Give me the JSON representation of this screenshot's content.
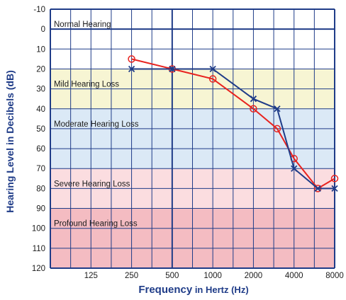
{
  "chart_data": {
    "type": "line",
    "xlabel_main": "Frequency",
    "xlabel_rest": " in Hertz (Hz)",
    "ylabel": "Hearing Level in Decibels (dB)",
    "x_ticks": [
      "125",
      "250",
      "500",
      "1000",
      "2000",
      "4000",
      "8000"
    ],
    "y_ticks": [
      -10,
      0,
      10,
      20,
      30,
      40,
      50,
      60,
      70,
      80,
      90,
      100,
      110,
      120
    ],
    "ylim": [
      -10,
      120
    ],
    "y_inverted": true,
    "x_scale": "log2",
    "grid": true,
    "bands": [
      {
        "label": "Normal Hearing",
        "from": -10,
        "to": 20,
        "color": "#ffffff"
      },
      {
        "label": "Mild Hearing Loss",
        "from": 20,
        "to": 40,
        "color": "#f7f5d3"
      },
      {
        "label": "Moderate Hearing Loss",
        "from": 40,
        "to": 70,
        "color": "#dbe9f6"
      },
      {
        "label": "Severe Hearing Loss",
        "from": 70,
        "to": 90,
        "color": "#fbdde0"
      },
      {
        "label": "Profound Hearing Loss",
        "from": 90,
        "to": 120,
        "color": "#f4bcc2"
      }
    ],
    "series": [
      {
        "marker": "circle",
        "color": "#e8231f",
        "x": [
          250,
          500,
          1000,
          2000,
          3000,
          4000,
          6000,
          8000
        ],
        "y": [
          15,
          20,
          25,
          40,
          50,
          65,
          80,
          75
        ]
      },
      {
        "marker": "x",
        "color": "#1f3c88",
        "x": [
          250,
          500,
          1000,
          2000,
          3000,
          4000,
          6000,
          8000
        ],
        "y": [
          20,
          20,
          20,
          35,
          40,
          70,
          80,
          80
        ]
      }
    ]
  },
  "colors": {
    "grid": "#1f3c88",
    "axis_title": "#1f3c88"
  }
}
